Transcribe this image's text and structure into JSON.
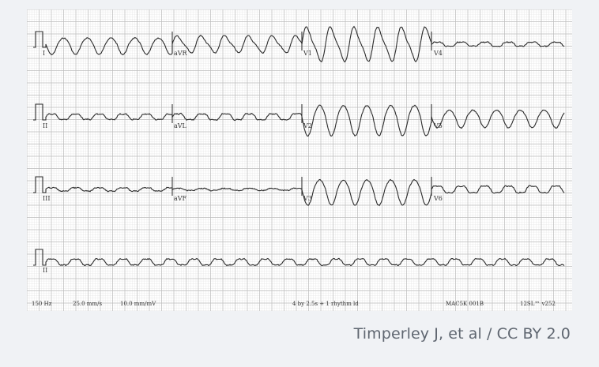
{
  "ecg": {
    "leads_row1": [
      "I",
      "aVR",
      "V1",
      "V4"
    ],
    "leads_row2": [
      "II",
      "aVL",
      "V2",
      "V5"
    ],
    "leads_row3": [
      "III",
      "aVF",
      "V3",
      "V6"
    ],
    "leads_row4": [
      "II"
    ],
    "footer": {
      "filter": "150 Hz",
      "speed": "25.0 mm/s",
      "gain": "10.0 mm/mV",
      "format": "4 by 2.5s + 1 rhythm ld",
      "device": "MAC5K 001B",
      "program": "12SL™ v252"
    },
    "colors": {
      "grid_major": "#bdbdbd",
      "grid_minor": "#e3e3e3",
      "trace": "#2b2b2b"
    }
  },
  "credit": "Timperley J, et al / CC BY 2.0"
}
